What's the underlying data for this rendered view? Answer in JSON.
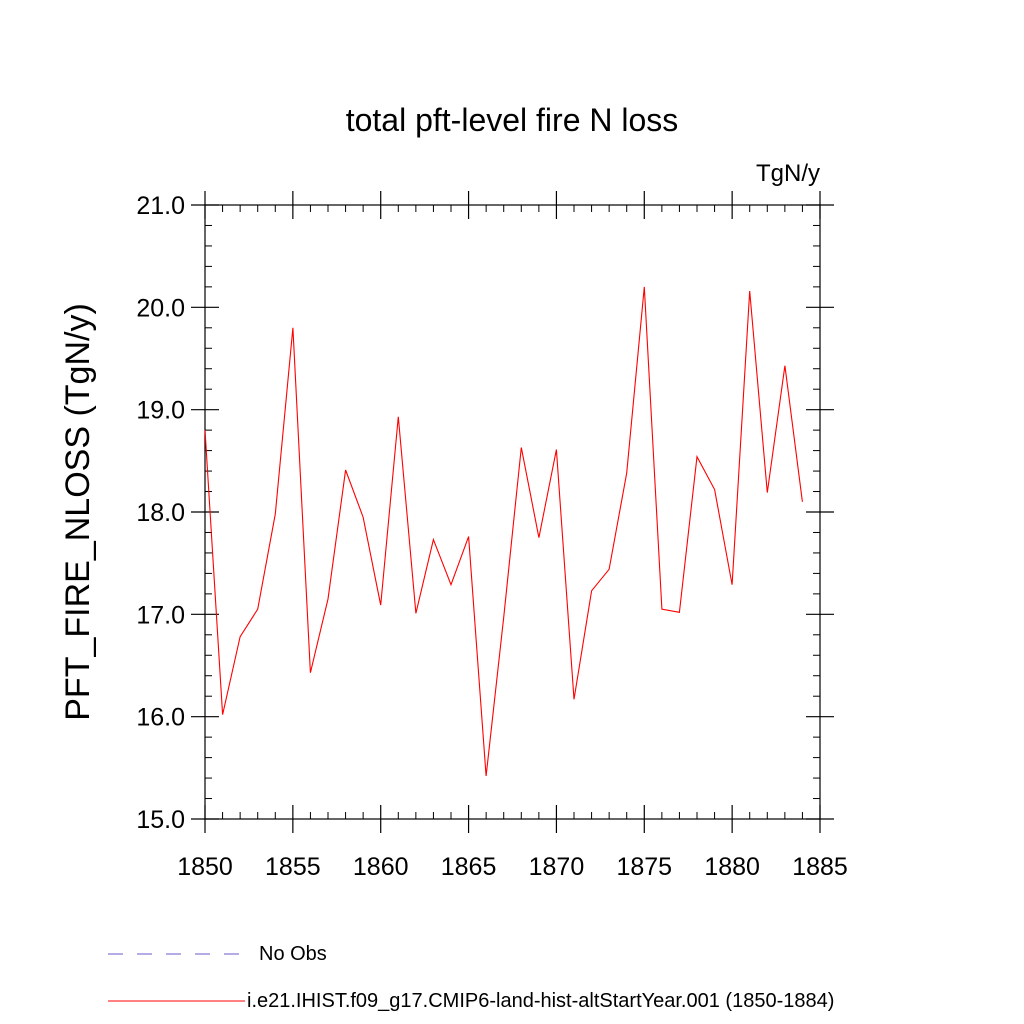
{
  "chart_data": {
    "type": "line",
    "title": "total pft-level fire N loss",
    "units": "TgN/y",
    "xlabel": "",
    "ylabel": "PFT_FIRE_NLOSS  (TgN/y)",
    "xlim": [
      1850,
      1885
    ],
    "ylim": [
      15.0,
      21.0
    ],
    "x_ticks": [
      1850,
      1855,
      1860,
      1865,
      1870,
      1875,
      1880,
      1885
    ],
    "x_tick_labels": [
      "1850",
      "1855",
      "1860",
      "1865",
      "1870",
      "1875",
      "1880",
      "1885"
    ],
    "y_ticks": [
      15.0,
      16.0,
      17.0,
      18.0,
      19.0,
      20.0,
      21.0
    ],
    "y_tick_labels": [
      "15.0",
      "16.0",
      "17.0",
      "18.0",
      "19.0",
      "20.0",
      "21.0"
    ],
    "grid": false,
    "legend_position": "bottom",
    "series": [
      {
        "name": "i.e21.IHIST.f09_g17.CMIP6-land-hist-altStartYear.001 (1850-1884)",
        "color": "#ff0000",
        "line_style": "solid",
        "x": [
          1850,
          1851,
          1852,
          1853,
          1854,
          1855,
          1856,
          1857,
          1858,
          1859,
          1860,
          1861,
          1862,
          1863,
          1864,
          1865,
          1866,
          1867,
          1868,
          1869,
          1870,
          1871,
          1872,
          1873,
          1874,
          1875,
          1876,
          1877,
          1878,
          1879,
          1880,
          1881,
          1882,
          1883,
          1884
        ],
        "values": [
          18.8,
          16.02,
          16.78,
          17.05,
          17.98,
          19.8,
          16.43,
          17.15,
          18.41,
          17.95,
          17.09,
          18.93,
          17.01,
          17.73,
          17.29,
          17.76,
          15.42,
          16.97,
          18.63,
          17.75,
          18.61,
          16.17,
          17.23,
          17.44,
          18.38,
          20.2,
          17.05,
          17.02,
          18.54,
          18.22,
          17.29,
          20.16,
          18.19,
          19.43,
          18.1
        ]
      }
    ],
    "legend": [
      {
        "label": "No Obs",
        "color": "#6a5acd",
        "line_style": "dashed"
      },
      {
        "label": "i.e21.IHIST.f09_g17.CMIP6-land-hist-altStartYear.001 (1850-1884)",
        "color": "#ff0000",
        "line_style": "solid"
      }
    ]
  }
}
